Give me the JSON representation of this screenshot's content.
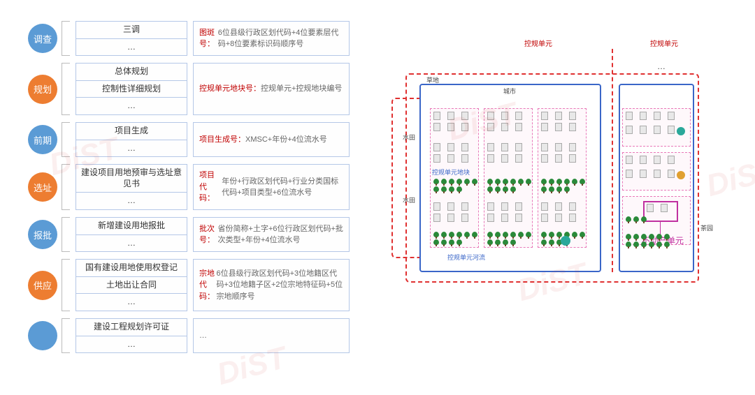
{
  "colors": {
    "circle_blue": "#5b9bd5",
    "circle_orange": "#ed7d31",
    "box_border": "#b4c7e7",
    "key_text": "#c00000",
    "body_text": "#666666",
    "map_blue": "#3a66c8",
    "map_red_dash": "#e03030",
    "map_pink_dash": "#e878b8",
    "tree_green": "#2a8a3a",
    "building_gray": "#e8e8e8"
  },
  "fonts": {
    "body_size": 12,
    "desc_size": 11,
    "circle_size": 13,
    "map_label_size": 9
  },
  "rows": [
    {
      "circle": "调查",
      "circle_color": "blue",
      "items": [
        "三调",
        "…"
      ],
      "key": "图斑号：",
      "desc": "6位县级行政区划代码+4位要素层代码+8位要素标识码顺序号"
    },
    {
      "circle": "规划",
      "circle_color": "orange",
      "items": [
        "总体规划",
        "控制性详细规划",
        "…"
      ],
      "key": "控规单元地块号：",
      "desc": "控规单元+控规地块编号"
    },
    {
      "circle": "前期",
      "circle_color": "blue",
      "items": [
        "项目生成",
        "…"
      ],
      "key": "项目生成号：",
      "desc": "XMSC+年份+4位流水号"
    },
    {
      "circle": "选址",
      "circle_color": "orange",
      "items": [
        "建设项目用地预审与选址意见书",
        "…"
      ],
      "key": "项目代码：",
      "desc": "年份+行政区划代码+行业分类国标代码+项目类型+6位流水号"
    },
    {
      "circle": "报批",
      "circle_color": "blue",
      "items": [
        "新增建设用地报批",
        "…"
      ],
      "key": "批次号：",
      "desc": "省份简称+土字+6位行政区划代码+批次类型+年份+4位流水号"
    },
    {
      "circle": "供应",
      "circle_color": "orange",
      "items": [
        "国有建设用地使用权登记",
        "土地出让合同",
        "…"
      ],
      "key": "宗地代码：",
      "desc": "6位县级行政区划代码+3位地籍区代码+3位地籍子区+2位宗地特征码+5位宗地顺序号"
    },
    {
      "circle": "",
      "circle_color": "blue",
      "items": [
        "建设工程规划许可证",
        "…"
      ],
      "key": "",
      "desc": "…"
    }
  ],
  "map_labels": {
    "top_left_red": "控规单元",
    "top_right_red": "控规单元",
    "ellipsis": "…",
    "grass": "草地",
    "city": "城市",
    "paddy1": "水田",
    "paddy2": "水田",
    "block_label": "控规单元地块",
    "river_label": "控规单元河流",
    "property_unit": "不动产单元",
    "tea": "茶园"
  },
  "watermark_text": "DiST"
}
